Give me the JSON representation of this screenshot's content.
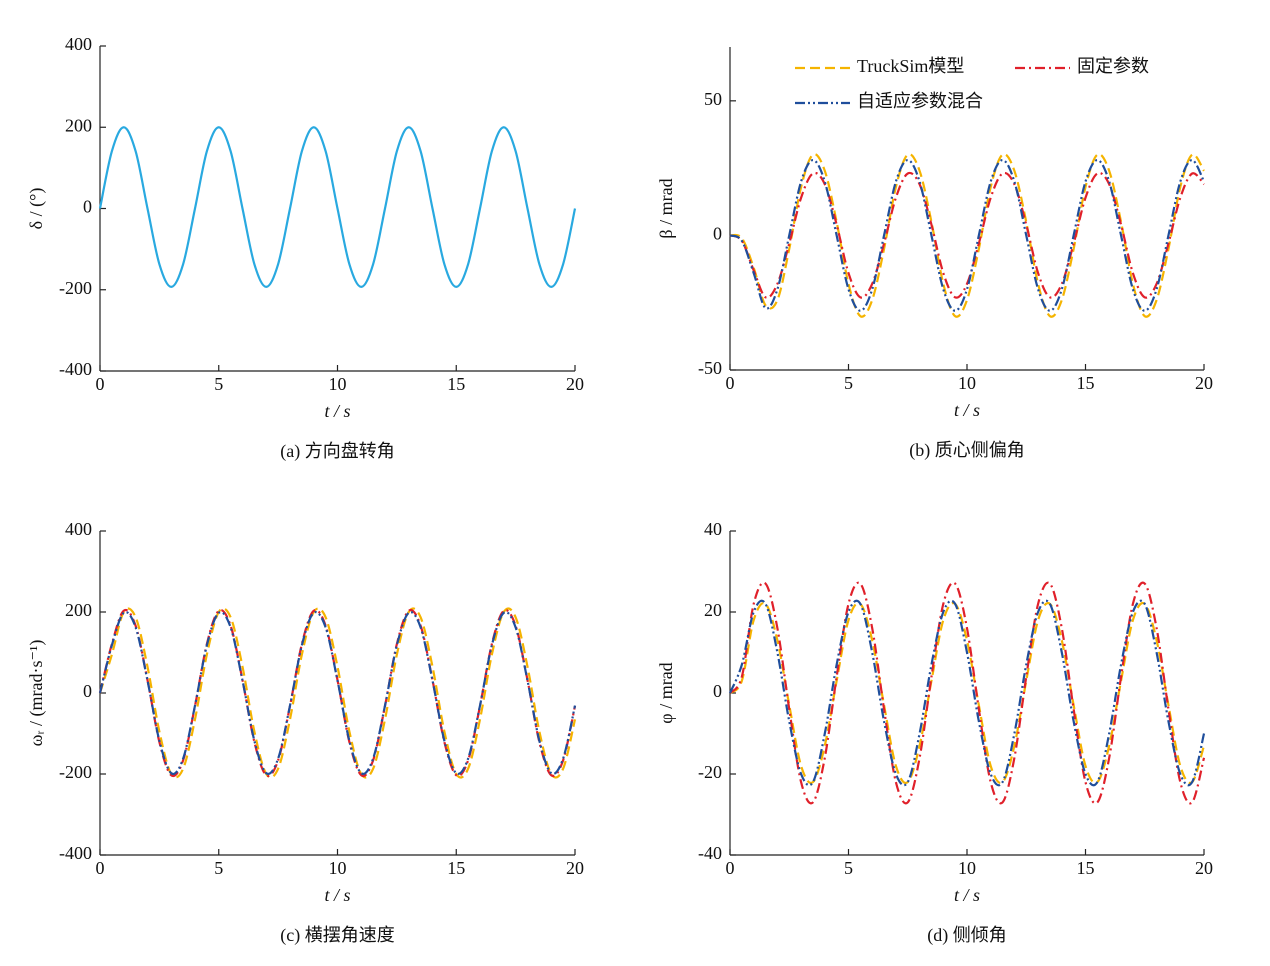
{
  "chart_data": [
    {
      "type": "line",
      "title": "(a)  方向盘转角",
      "xlabel": "t / s",
      "ylabel": "δ / (°)",
      "x": [
        0,
        0.5,
        1,
        1.5,
        2,
        2.5,
        3,
        3.5,
        4,
        4.5,
        5,
        5.5,
        6,
        6.5,
        7,
        7.5,
        8,
        8.5,
        9,
        9.5,
        10,
        10.5,
        11,
        11.5,
        12,
        12.5,
        13,
        13.5,
        14,
        14.5,
        15,
        15.5,
        16,
        16.5,
        17,
        17.5,
        18,
        18.5,
        19,
        19.5,
        20
      ],
      "series": [
        {
          "color": "#29a9e0",
          "linestyle": "solid",
          "values": [
            0,
            141,
            200,
            141,
            0,
            -137,
            -193,
            -137,
            0,
            141,
            200,
            141,
            0,
            -137,
            -193,
            -137,
            0,
            141,
            200,
            141,
            0,
            -137,
            -193,
            -137,
            0,
            141,
            200,
            141,
            0,
            -137,
            -193,
            -137,
            0,
            141,
            200,
            141,
            0,
            -137,
            -193,
            -137,
            0
          ]
        }
      ],
      "xlim": [
        0,
        20
      ],
      "xticks": [
        0,
        5,
        10,
        15,
        20
      ],
      "ylim": [
        -400,
        400
      ],
      "yticks": [
        -400,
        -200,
        0,
        200,
        400
      ]
    },
    {
      "type": "line",
      "title": "(b)  质心侧偏角",
      "xlabel": "t / s",
      "ylabel": "β / mrad",
      "x": [
        0,
        0.5,
        1,
        1.5,
        2,
        2.5,
        3,
        3.5,
        4,
        4.5,
        5,
        5.5,
        6,
        6.5,
        7,
        7.5,
        8,
        8.5,
        9,
        9.5,
        10,
        10.5,
        11,
        11.5,
        12,
        12.5,
        13,
        13.5,
        14,
        14.5,
        15,
        15.5,
        16,
        16.5,
        17,
        17.5,
        18,
        18.5,
        19,
        19.5,
        20
      ],
      "series": [
        {
          "name": "TruckSim模型",
          "color": "#f5b400",
          "linestyle": "dashed",
          "values": [
            0,
            -1,
            -12,
            -26,
            -24,
            -5,
            18,
            30,
            24,
            5,
            -18,
            -30,
            -24,
            -5,
            18,
            30,
            24,
            5,
            -18,
            -30,
            -24,
            -5,
            18,
            30,
            24,
            5,
            -18,
            -30,
            -24,
            -5,
            18,
            30,
            24,
            5,
            -18,
            -30,
            -24,
            -5,
            18,
            30,
            24
          ]
        },
        {
          "name": "固定参数",
          "color": "#e0202a",
          "linestyle": "dashdot",
          "values": [
            0,
            -2,
            -13,
            -23,
            -18,
            -3,
            14,
            23,
            19,
            4,
            -14,
            -23,
            -18,
            -3,
            14,
            23,
            19,
            4,
            -14,
            -23,
            -18,
            -3,
            14,
            23,
            19,
            4,
            -14,
            -23,
            -18,
            -3,
            14,
            23,
            19,
            4,
            -14,
            -23,
            -18,
            -3,
            14,
            23,
            19
          ]
        },
        {
          "name": "自适应参数混合",
          "color": "#1f4e9c",
          "linestyle": "dashdotdot",
          "values": [
            0,
            -2,
            -14,
            -27,
            -20,
            0,
            20,
            28,
            20,
            0,
            -20,
            -28,
            -20,
            0,
            20,
            28,
            20,
            0,
            -20,
            -28,
            -20,
            0,
            20,
            28,
            20,
            0,
            -20,
            -28,
            -20,
            0,
            20,
            28,
            20,
            0,
            -20,
            -28,
            -20,
            0,
            20,
            28,
            20
          ]
        }
      ],
      "legend": "top",
      "xlim": [
        0,
        20
      ],
      "xticks": [
        0,
        5,
        10,
        15,
        20
      ],
      "ylim": [
        -50,
        70
      ],
      "yticks": [
        -50,
        0,
        50
      ]
    },
    {
      "type": "line",
      "title": "(c)  横摆角速度",
      "xlabel": "t / s",
      "ylabel": "ωᵣ / (mrad·s⁻¹)",
      "x": [
        0,
        0.5,
        1,
        1.5,
        2,
        2.5,
        3,
        3.5,
        4,
        4.5,
        5,
        5.5,
        6,
        6.5,
        7,
        7.5,
        8,
        8.5,
        9,
        9.5,
        10,
        10.5,
        11,
        11.5,
        12,
        12.5,
        13,
        13.5,
        14,
        14.5,
        15,
        15.5,
        16,
        16.5,
        17,
        17.5,
        18,
        18.5,
        19,
        19.5,
        20
      ],
      "series": [
        {
          "color": "#f5b400",
          "linestyle": "dashed",
          "values": [
            0,
            95,
            200,
            187,
            65,
            -95,
            -200,
            -187,
            -65,
            95,
            200,
            187,
            65,
            -95,
            -200,
            -187,
            -65,
            95,
            200,
            187,
            65,
            -95,
            -200,
            -187,
            -65,
            95,
            200,
            187,
            65,
            -95,
            -200,
            -187,
            -65,
            95,
            200,
            187,
            65,
            -95,
            -200,
            -187,
            -65
          ]
        },
        {
          "color": "#e0202a",
          "linestyle": "dashdot",
          "values": [
            0,
            121,
            203,
            166,
            32,
            -121,
            -203,
            -166,
            -32,
            121,
            203,
            166,
            32,
            -121,
            -203,
            -166,
            -32,
            121,
            203,
            166,
            32,
            -121,
            -203,
            -166,
            -32,
            121,
            203,
            166,
            32,
            -121,
            -203,
            -166,
            -32,
            121,
            203,
            166,
            32,
            -121,
            -203,
            -166,
            -32
          ]
        },
        {
          "color": "#1f4e9c",
          "linestyle": "dashdotdot",
          "values": [
            0,
            118,
            198,
            162,
            31,
            -118,
            -198,
            -162,
            -31,
            118,
            198,
            162,
            31,
            -118,
            -198,
            -162,
            -31,
            118,
            198,
            162,
            31,
            -118,
            -198,
            -162,
            -31,
            118,
            198,
            162,
            31,
            -118,
            -198,
            -162,
            -31,
            118,
            198,
            162,
            31,
            -118,
            -198,
            -162,
            -31
          ]
        }
      ],
      "xlim": [
        0,
        20
      ],
      "xticks": [
        0,
        5,
        10,
        15,
        20
      ],
      "ylim": [
        -400,
        400
      ],
      "yticks": [
        -400,
        -200,
        0,
        200,
        400
      ]
    },
    {
      "type": "line",
      "title": "(d)  侧倾角",
      "xlabel": "t / s",
      "ylabel": "φ / mrad",
      "x": [
        0,
        0.5,
        1,
        1.5,
        2,
        2.5,
        3,
        3.5,
        4,
        4.5,
        5,
        5.5,
        6,
        6.5,
        7,
        7.5,
        8,
        8.5,
        9,
        9.5,
        10,
        10.5,
        11,
        11.5,
        12,
        12.5,
        13,
        13.5,
        14,
        14.5,
        15,
        15.5,
        16,
        16.5,
        17,
        17.5,
        18,
        18.5,
        19,
        19.5,
        20
      ],
      "series": [
        {
          "color": "#f5b400",
          "linestyle": "dashed",
          "values": [
            0,
            3,
            18,
            22,
            13,
            -3,
            -18,
            -22,
            -13,
            3,
            18,
            22,
            13,
            -3,
            -18,
            -22,
            -13,
            3,
            18,
            22,
            13,
            -3,
            -18,
            -22,
            -13,
            3,
            18,
            22,
            13,
            -3,
            -18,
            -22,
            -13,
            3,
            18,
            22,
            13,
            -3,
            -18,
            -22,
            -13
          ]
        },
        {
          "color": "#e0202a",
          "linestyle": "dashdot",
          "values": [
            0,
            4,
            22,
            27,
            16,
            -4,
            -22,
            -27,
            -16,
            4,
            22,
            27,
            16,
            -4,
            -22,
            -27,
            -16,
            4,
            22,
            27,
            16,
            -4,
            -22,
            -27,
            -16,
            4,
            22,
            27,
            16,
            -4,
            -22,
            -27,
            -16,
            4,
            22,
            27,
            16,
            -4,
            -22,
            -27,
            -16
          ]
        },
        {
          "color": "#1f4e9c",
          "linestyle": "dashdotdot",
          "values": [
            0,
            7,
            20,
            22,
            10,
            -7,
            -20,
            -22,
            -10,
            7,
            20,
            22,
            10,
            -7,
            -20,
            -22,
            -10,
            7,
            20,
            22,
            10,
            -7,
            -20,
            -22,
            -10,
            7,
            20,
            22,
            10,
            -7,
            -20,
            -22,
            -10,
            7,
            20,
            22,
            10,
            -7,
            -20,
            -22,
            -10
          ]
        }
      ],
      "xlim": [
        0,
        20
      ],
      "xticks": [
        0,
        5,
        10,
        15,
        20
      ],
      "ylim": [
        -40,
        40
      ],
      "yticks": [
        -40,
        -20,
        0,
        20,
        40
      ]
    }
  ]
}
